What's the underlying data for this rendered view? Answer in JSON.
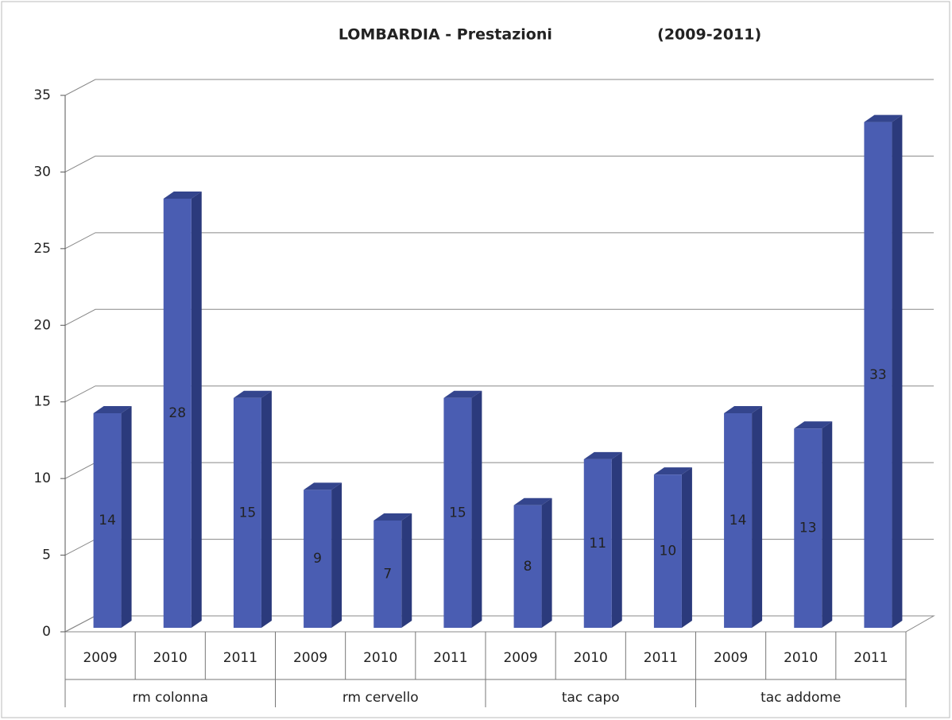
{
  "chart_data": {
    "type": "bar3d",
    "title": "LOMBARDIA - Prestazioni                    (2009-2011)",
    "categories": [
      "2009",
      "2010",
      "2011",
      "2009",
      "2010",
      "2011",
      "2009",
      "2010",
      "2011",
      "2009",
      "2010",
      "2011"
    ],
    "groups": [
      "rm colonna",
      "rm cervello",
      "tac capo",
      "tac addome"
    ],
    "values": [
      14,
      28,
      15,
      9,
      7,
      15,
      8,
      11,
      10,
      14,
      13,
      33
    ],
    "color": "#4a5db2",
    "ylim": [
      0,
      35
    ],
    "yticks": [
      0,
      5,
      10,
      15,
      20,
      25,
      30,
      35
    ],
    "grid": true
  }
}
